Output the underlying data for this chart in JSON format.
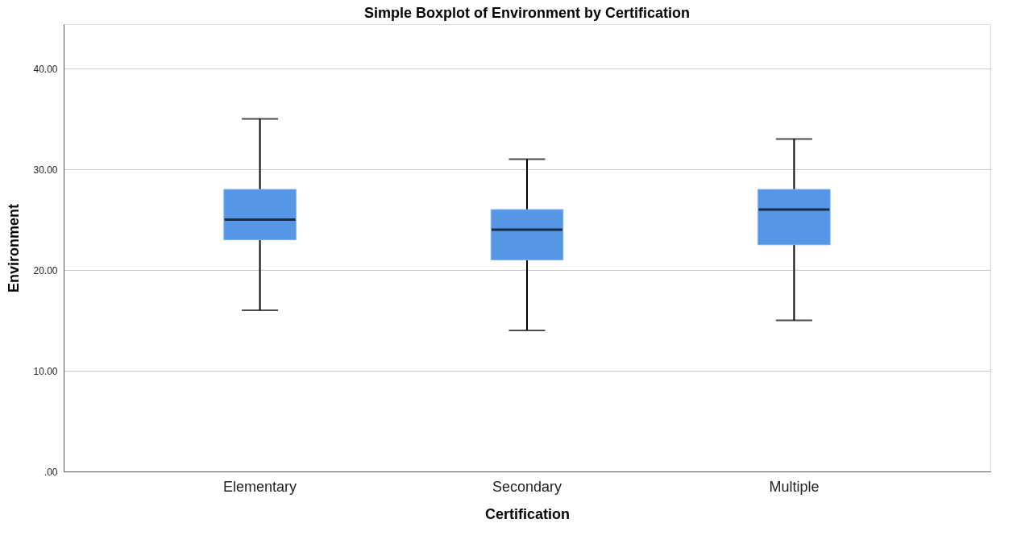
{
  "chart_data": {
    "type": "box",
    "title": "Simple Boxplot of Environment by Certification",
    "xlabel": "Certification",
    "ylabel": "Environment",
    "categories": [
      "Elementary",
      "Secondary",
      "Multiple"
    ],
    "series": [
      {
        "color": "#5597e6",
        "boxes": [
          {
            "low": 16,
            "q1": 23,
            "median": 25,
            "q3": 28,
            "high": 35
          },
          {
            "low": 14,
            "q1": 21,
            "median": 24,
            "q3": 26,
            "high": 31
          },
          {
            "low": 15,
            "q1": 22.5,
            "median": 26,
            "q3": 28,
            "high": 33
          }
        ]
      }
    ],
    "ylim": [
      0,
      44.4
    ],
    "yticks": [
      {
        "value": 0,
        "label": ".00"
      },
      {
        "value": 10,
        "label": "10.00"
      },
      {
        "value": 20,
        "label": "20.00"
      },
      {
        "value": 30,
        "label": "30.00"
      },
      {
        "value": 40,
        "label": "40.00"
      }
    ],
    "grid": "y"
  }
}
